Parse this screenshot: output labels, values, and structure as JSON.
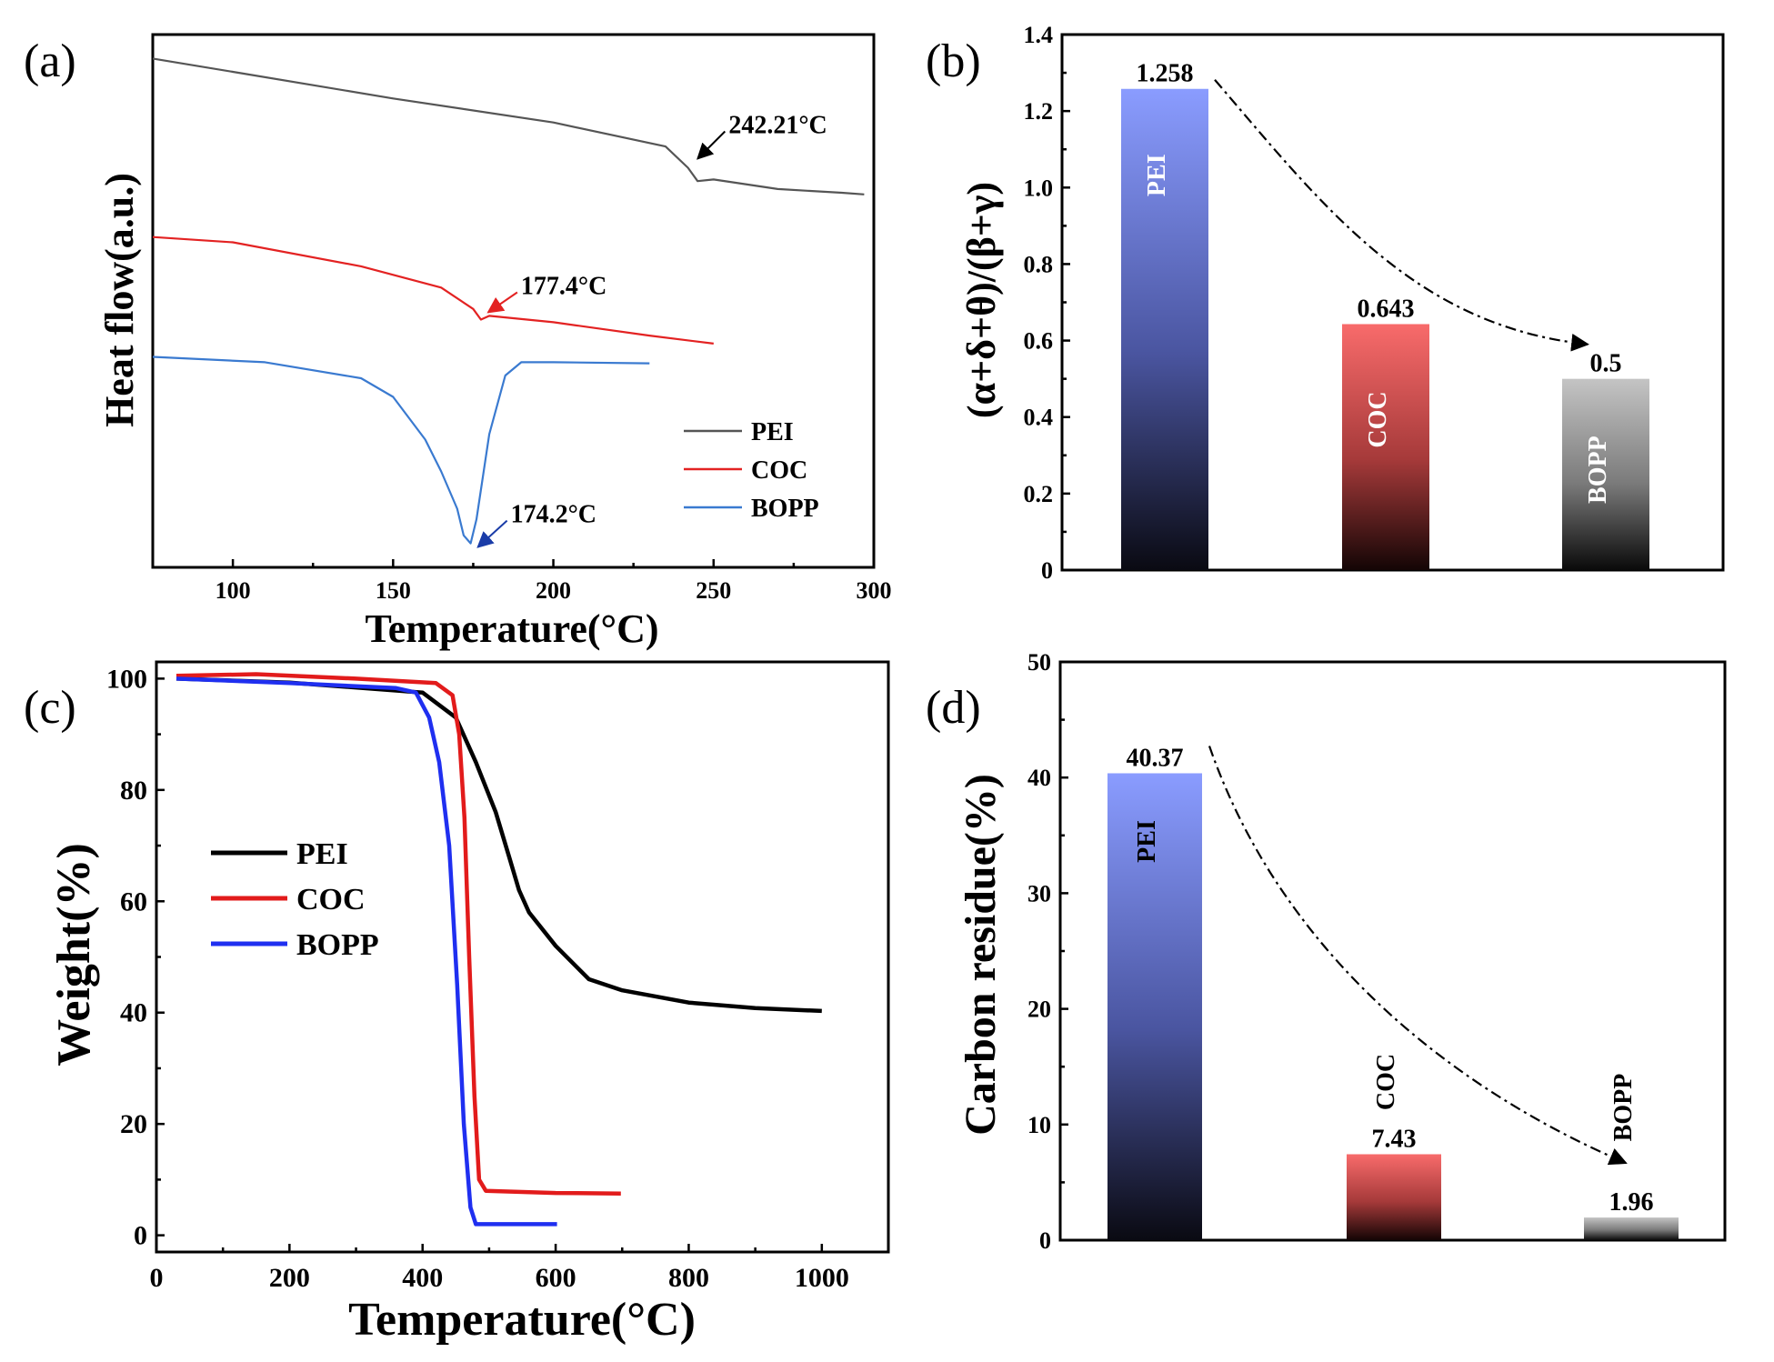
{
  "chart_data": [
    {
      "id": "a",
      "panel_label": "(a)",
      "type": "line",
      "title": "",
      "xlabel": "Temperature(°C)",
      "ylabel": "Heat flow(a.u.)",
      "xlim": [
        75,
        300
      ],
      "ylim": [
        0,
        100
      ],
      "xticks": [
        100,
        150,
        200,
        250,
        300
      ],
      "xtick_labels": [
        "100",
        "150",
        "200",
        "250",
        "300"
      ],
      "legend_position": "bottom-right",
      "series": [
        {
          "name": "PEI",
          "color": "#555555",
          "x": [
            75,
            100,
            150,
            200,
            235,
            242,
            245,
            250,
            270,
            290,
            297
          ],
          "y": [
            95.5,
            93.0,
            88.0,
            83.5,
            79.0,
            75.0,
            72.5,
            72.8,
            71.0,
            70.3,
            70.0
          ]
        },
        {
          "name": "COC",
          "color": "#e32222",
          "x": [
            75,
            100,
            140,
            165,
            175,
            177.4,
            180,
            200,
            230,
            250
          ],
          "y": [
            62.0,
            61.0,
            56.5,
            52.5,
            48.5,
            46.5,
            47.2,
            46.0,
            43.5,
            42.0
          ]
        },
        {
          "name": "BOPP",
          "color": "#3a7ad0",
          "x": [
            75,
            110,
            140,
            150,
            160,
            165,
            170,
            172,
            174.2,
            176,
            180,
            185,
            190,
            200,
            230
          ],
          "y": [
            39.5,
            38.5,
            35.5,
            32.0,
            24.0,
            18.0,
            11.0,
            6.0,
            4.5,
            9.0,
            25.0,
            36.0,
            38.5,
            38.5,
            38.3
          ]
        }
      ],
      "annotations": [
        {
          "text": "242.21°C",
          "x": 242.21,
          "y": 75.0,
          "color": "#000000"
        },
        {
          "text": "177.4°C",
          "x": 177.4,
          "y": 46.5,
          "color": "#e32222"
        },
        {
          "text": "174.2°C",
          "x": 174.2,
          "y": 4.5,
          "color": "#1a3ca8"
        }
      ]
    },
    {
      "id": "b",
      "panel_label": "(b)",
      "type": "bar",
      "title": "",
      "xlabel": "",
      "ylabel": "(α+δ+θ)/(β+γ)",
      "ylim": [
        0,
        1.4
      ],
      "yticks": [
        0,
        0.2,
        0.4,
        0.6,
        0.8,
        1.0,
        1.2,
        1.4
      ],
      "ytick_labels": [
        "0",
        "0.2",
        "0.4",
        "0.6",
        "0.8",
        "1.0",
        "1.2",
        "1.4"
      ],
      "categories": [
        "PEI",
        "COC",
        "BOPP"
      ],
      "values": [
        1.258,
        0.643,
        0.5
      ],
      "value_labels": [
        "1.258",
        "0.643",
        "0.5"
      ],
      "bar_colors": [
        "#8a9cff",
        "#f86b6b",
        "#c0c0c0"
      ],
      "trend_arrow": "dash-dot curve from PEI to BOPP"
    },
    {
      "id": "c",
      "panel_label": "(c)",
      "type": "line",
      "title": "",
      "xlabel": "Temperature(°C)",
      "ylabel": "Weight(%)",
      "xlim": [
        0,
        1100
      ],
      "ylim": [
        -3,
        103
      ],
      "xticks": [
        0,
        200,
        400,
        600,
        800,
        1000
      ],
      "xtick_labels": [
        "0",
        "200",
        "400",
        "600",
        "800",
        "1000"
      ],
      "yticks": [
        0,
        20,
        40,
        60,
        80,
        100
      ],
      "ytick_labels": [
        "0",
        "20",
        "40",
        "60",
        "80",
        "100"
      ],
      "legend_position": "center-left",
      "series": [
        {
          "name": "PEI",
          "color": "#000000",
          "x": [
            30,
            200,
            400,
            450,
            480,
            510,
            530,
            545,
            560,
            600,
            650,
            700,
            800,
            900,
            1000
          ],
          "y": [
            100,
            99.3,
            97.5,
            93,
            85,
            76,
            68,
            62,
            58,
            52,
            46,
            44,
            41.8,
            40.8,
            40.3
          ]
        },
        {
          "name": "COC",
          "color": "#e21b1b",
          "x": [
            30,
            150,
            300,
            420,
            445,
            455,
            463,
            470,
            478,
            485,
            495,
            600,
            698
          ],
          "y": [
            100.5,
            100.8,
            100,
            99.2,
            97,
            90,
            75,
            50,
            25,
            10,
            8,
            7.6,
            7.5
          ]
        },
        {
          "name": "BOPP",
          "color": "#1f2ff0",
          "x": [
            30,
            200,
            360,
            390,
            410,
            425,
            440,
            452,
            462,
            472,
            480,
            500,
            602
          ],
          "y": [
            100,
            99.2,
            98.3,
            97.5,
            93,
            85,
            70,
            45,
            20,
            5,
            2,
            2,
            2
          ]
        }
      ]
    },
    {
      "id": "d",
      "panel_label": "(d)",
      "type": "bar",
      "title": "",
      "xlabel": "",
      "ylabel": "Carbon residue(%)",
      "ylim": [
        0,
        50
      ],
      "yticks": [
        0,
        10,
        20,
        30,
        40,
        50
      ],
      "ytick_labels": [
        "0",
        "10",
        "20",
        "30",
        "40",
        "50"
      ],
      "categories": [
        "PEI",
        "COC",
        "BOPP"
      ],
      "values": [
        40.37,
        7.43,
        1.96
      ],
      "value_labels": [
        "40.37",
        "7.43",
        "1.96"
      ],
      "bar_colors": [
        "#8a9cff",
        "#f86b6b",
        "#c0c0c0"
      ],
      "trend_arrow": "dash-dot curve from PEI to BOPP"
    }
  ]
}
